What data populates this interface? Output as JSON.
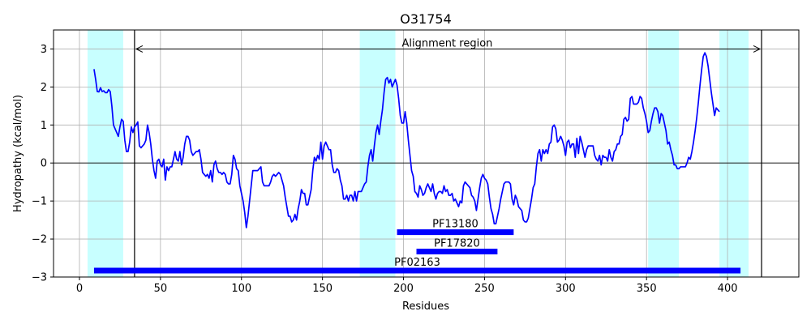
{
  "chart_data": {
    "type": "line",
    "title": "O31754",
    "xlabel": "Residues",
    "ylabel": "Hydropathy (kcal/mol)",
    "xlim": [
      -16,
      444
    ],
    "ylim": [
      -3,
      3.5
    ],
    "xticks": [
      0,
      50,
      100,
      150,
      200,
      250,
      300,
      350,
      400
    ],
    "yticks": [
      -3,
      -2,
      -1,
      0,
      1,
      2,
      3
    ],
    "grid": true,
    "line_color": "#0000ff",
    "hydropathy": {
      "x_start": 9,
      "values": [
        2.47,
        2.2,
        1.88,
        1.87,
        1.98,
        1.88,
        1.9,
        1.85,
        1.85,
        1.93,
        1.88,
        1.5,
        1.0,
        0.9,
        0.8,
        0.7,
        0.95,
        1.15,
        1.1,
        0.6,
        0.3,
        0.3,
        0.55,
        0.95,
        0.8,
        0.95,
        1.0,
        1.08,
        0.45,
        0.4,
        0.45,
        0.5,
        0.6,
        1.0,
        0.8,
        0.5,
        0.1,
        -0.2,
        -0.4,
        0.05,
        0.1,
        -0.05,
        -0.1,
        0.1,
        -0.45,
        -0.1,
        -0.2,
        -0.1,
        -0.1,
        0.1,
        0.3,
        0.1,
        0.05,
        0.3,
        -0.05,
        0.15,
        0.5,
        0.7,
        0.7,
        0.6,
        0.3,
        0.2,
        0.25,
        0.3,
        0.3,
        0.35,
        0.1,
        -0.25,
        -0.3,
        -0.35,
        -0.3,
        -0.4,
        -0.2,
        -0.5,
        -0.05,
        0.05,
        -0.15,
        -0.25,
        -0.25,
        -0.3,
        -0.25,
        -0.3,
        -0.5,
        -0.55,
        -0.55,
        -0.3,
        0.2,
        0.1,
        -0.15,
        -0.2,
        -0.6,
        -0.8,
        -1.0,
        -1.3,
        -1.7,
        -1.4,
        -1.0,
        -0.6,
        -0.2,
        -0.2,
        -0.2,
        -0.2,
        -0.15,
        -0.1,
        -0.5,
        -0.6,
        -0.6,
        -0.6,
        -0.6,
        -0.5,
        -0.35,
        -0.3,
        -0.35,
        -0.3,
        -0.25,
        -0.3,
        -0.45,
        -0.6,
        -0.9,
        -1.15,
        -1.4,
        -1.4,
        -1.55,
        -1.5,
        -1.35,
        -1.5,
        -1.2,
        -1.0,
        -0.7,
        -0.8,
        -0.8,
        -1.1,
        -1.1,
        -0.9,
        -0.7,
        -0.2,
        0.15,
        0.05,
        0.2,
        0.1,
        0.55,
        0.1,
        0.45,
        0.55,
        0.45,
        0.35,
        0.35,
        -0.05,
        -0.25,
        -0.25,
        -0.15,
        -0.2,
        -0.45,
        -0.6,
        -0.95,
        -0.95,
        -0.85,
        -1.0,
        -0.85,
        -0.85,
        -1.0,
        -0.75,
        -1.0,
        -0.75,
        -0.75,
        -0.75,
        -0.65,
        -0.55,
        -0.5,
        -0.1,
        0.2,
        0.35,
        0.05,
        0.45,
        0.8,
        1.0,
        0.75,
        1.1,
        1.4,
        1.85,
        2.2,
        2.25,
        2.1,
        2.2,
        2.0,
        2.1,
        2.2,
        2.05,
        1.7,
        1.25,
        1.05,
        1.05,
        1.35,
        1.05,
        0.6,
        0.2,
        -0.2,
        -0.35,
        -0.75,
        -0.8,
        -0.9,
        -0.6,
        -0.7,
        -0.85,
        -0.8,
        -0.65,
        -0.55,
        -0.65,
        -0.75,
        -0.55,
        -0.8,
        -0.95,
        -0.8,
        -0.75,
        -0.75,
        -0.8,
        -0.6,
        -0.75,
        -0.7,
        -0.85,
        -0.85,
        -0.8,
        -1.0,
        -0.95,
        -1.05,
        -1.15,
        -1.0,
        -1.05,
        -0.6,
        -0.5,
        -0.55,
        -0.6,
        -0.65,
        -0.85,
        -0.9,
        -1.0,
        -1.25,
        -0.95,
        -0.65,
        -0.4,
        -0.3,
        -0.4,
        -0.45,
        -0.55,
        -0.9,
        -1.2,
        -1.35,
        -1.6,
        -1.6,
        -1.4,
        -1.2,
        -0.95,
        -0.75,
        -0.55,
        -0.5,
        -0.5,
        -0.5,
        -0.55,
        -0.95,
        -1.1,
        -0.85,
        -0.95,
        -1.15,
        -1.2,
        -1.25,
        -1.5,
        -1.55,
        -1.55,
        -1.45,
        -1.2,
        -0.95,
        -0.65,
        -0.55,
        -0.1,
        0.25,
        0.35,
        0.05,
        0.35,
        0.25,
        0.35,
        0.25,
        0.5,
        0.55,
        0.95,
        1.0,
        0.9,
        0.55,
        0.6,
        0.7,
        0.6,
        0.45,
        0.2,
        0.55,
        0.6,
        0.4,
        0.5,
        0.5,
        0.15,
        0.65,
        0.25,
        0.7,
        0.55,
        0.35,
        0.15,
        0.35,
        0.45,
        0.45,
        0.45,
        0.45,
        0.2,
        0.1,
        0.05,
        0.2,
        -0.05,
        0.2,
        0.15,
        0.15,
        0.05,
        0.35,
        0.15,
        0.05,
        0.3,
        0.35,
        0.5,
        0.5,
        0.7,
        0.75,
        1.15,
        1.2,
        1.1,
        1.15,
        1.7,
        1.75,
        1.55,
        1.55,
        1.55,
        1.6,
        1.75,
        1.7,
        1.45,
        1.3,
        1.1,
        0.8,
        0.85,
        1.1,
        1.3,
        1.45,
        1.45,
        1.35,
        1.05,
        1.3,
        1.25,
        1.05,
        0.85,
        0.5,
        0.55,
        0.35,
        0.2,
        -0.05,
        -0.05,
        -0.15,
        -0.15,
        -0.1,
        -0.1,
        -0.1,
        -0.1,
        0.0,
        0.15,
        0.1,
        0.3,
        0.55,
        0.85,
        1.2,
        1.6,
        2.05,
        2.45,
        2.8,
        2.9,
        2.8,
        2.55,
        2.2,
        1.85,
        1.55,
        1.25,
        1.45,
        1.4,
        1.35
      ]
    },
    "shaded_regions": [
      [
        5,
        27
      ],
      [
        173,
        195
      ],
      [
        351,
        370
      ],
      [
        395,
        413
      ]
    ],
    "region_color": "#c8ffff",
    "alignment": {
      "label": "Alignment region",
      "start": 34,
      "end": 421,
      "arrow_y": 3.0,
      "label_y": 3.15
    },
    "domains": [
      {
        "name": "PF13180",
        "start": 196,
        "end": 268,
        "y": -1.82
      },
      {
        "name": "PF17820",
        "start": 208,
        "end": 258,
        "y": -2.33
      },
      {
        "name": "PF02163",
        "start": 9,
        "end": 408,
        "y": -2.83
      }
    ],
    "domain_color": "#0000ff"
  }
}
